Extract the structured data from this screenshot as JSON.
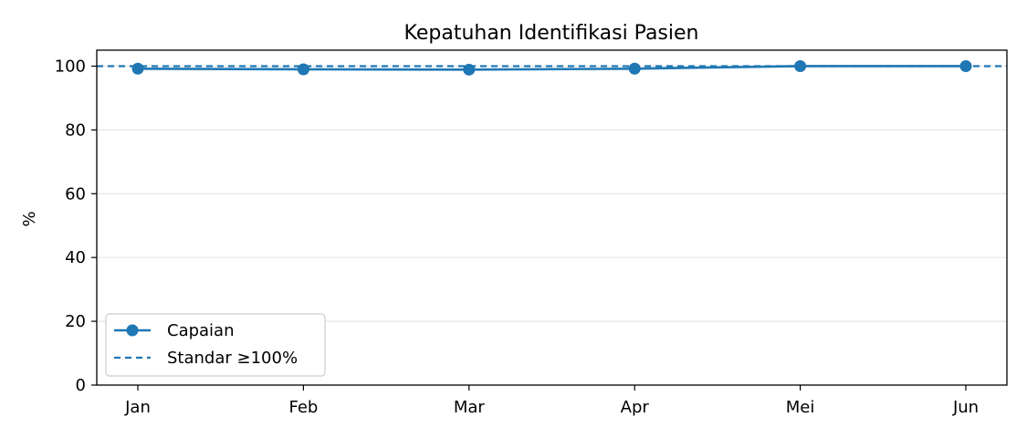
{
  "chart_data": {
    "type": "line",
    "title": "Kepatuhan Identifikasi Pasien",
    "xlabel": "",
    "ylabel": "%",
    "categories": [
      "Jan",
      "Feb",
      "Mar",
      "Apr",
      "Mei",
      "Jun"
    ],
    "series": [
      {
        "name": "Capaian",
        "values": [
          99.2,
          99.0,
          98.9,
          99.2,
          100.0,
          100.0
        ],
        "color": "#1f77b4",
        "marker": "circle"
      }
    ],
    "reference_lines": [
      {
        "name": "Standar ≥100%",
        "y": 100,
        "style": "dashed",
        "color": "#1f77b4"
      }
    ],
    "ylim": [
      0,
      105
    ],
    "yticks": [
      0,
      20,
      40,
      60,
      80,
      100
    ],
    "grid": "horizontal",
    "legend_position": "lower-left"
  }
}
